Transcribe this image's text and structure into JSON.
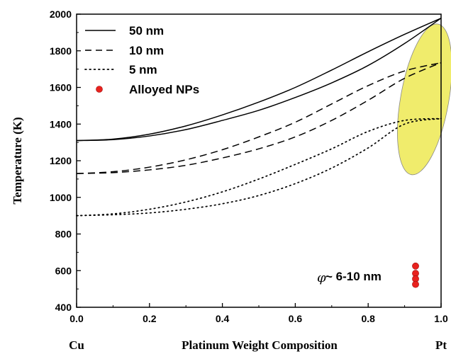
{
  "chart_data": {
    "type": "line",
    "xlabel": "Platinum Weight Composition",
    "ylabel": "Temperature (K)",
    "xlim": [
      0.0,
      1.0
    ],
    "ylim": [
      400,
      2000
    ],
    "x_ticks": [
      "0.0",
      "0.2",
      "0.4",
      "0.6",
      "0.8",
      "1.0"
    ],
    "y_ticks": [
      "400",
      "600",
      "800",
      "1000",
      "1200",
      "1400",
      "1600",
      "1800",
      "2000"
    ],
    "x_end_labels": {
      "left": "Cu",
      "right": "Pt"
    },
    "legend": {
      "position": "top-left",
      "entries": [
        {
          "label": "50 nm",
          "style": "solid"
        },
        {
          "label": "10 nm",
          "style": "dashed"
        },
        {
          "label": "5 nm",
          "style": "dotted"
        },
        {
          "label": "Alloyed NPs",
          "style": "marker",
          "color": "#e8221e"
        }
      ]
    },
    "series": [
      {
        "name": "50 nm",
        "style": "solid",
        "curves": [
          {
            "x": [
              0.0,
              0.1,
              0.2,
              0.3,
              0.4,
              0.5,
              0.6,
              0.7,
              0.8,
              0.9,
              1.0
            ],
            "y": [
              1310,
              1318,
              1345,
              1390,
              1450,
              1520,
              1600,
              1695,
              1795,
              1890,
              1978
            ]
          },
          {
            "x": [
              0.0,
              0.1,
              0.2,
              0.3,
              0.4,
              0.5,
              0.6,
              0.7,
              0.8,
              0.9,
              1.0
            ],
            "y": [
              1310,
              1315,
              1335,
              1370,
              1420,
              1475,
              1545,
              1625,
              1720,
              1840,
              1978
            ]
          }
        ]
      },
      {
        "name": "10 nm",
        "style": "dashed",
        "curves": [
          {
            "x": [
              0.0,
              0.1,
              0.2,
              0.3,
              0.4,
              0.5,
              0.6,
              0.7,
              0.8,
              0.9,
              1.0
            ],
            "y": [
              1130,
              1140,
              1165,
              1205,
              1260,
              1330,
              1410,
              1510,
              1610,
              1690,
              1735
            ]
          },
          {
            "x": [
              0.0,
              0.1,
              0.2,
              0.3,
              0.4,
              0.5,
              0.6,
              0.7,
              0.8,
              0.9,
              1.0
            ],
            "y": [
              1130,
              1135,
              1150,
              1175,
              1215,
              1265,
              1330,
              1420,
              1530,
              1650,
              1735
            ]
          }
        ]
      },
      {
        "name": "5 nm",
        "style": "dotted",
        "curves": [
          {
            "x": [
              0.0,
              0.1,
              0.2,
              0.3,
              0.4,
              0.5,
              0.6,
              0.7,
              0.8,
              0.9,
              1.0
            ],
            "y": [
              900,
              910,
              935,
              975,
              1030,
              1100,
              1180,
              1265,
              1360,
              1420,
              1430
            ]
          },
          {
            "x": [
              0.0,
              0.1,
              0.2,
              0.3,
              0.4,
              0.5,
              0.6,
              0.7,
              0.8,
              0.9,
              1.0
            ],
            "y": [
              900,
              905,
              915,
              935,
              965,
              1010,
              1075,
              1160,
              1270,
              1400,
              1430
            ]
          }
        ]
      }
    ],
    "alloyed_nps": {
      "x": 0.93,
      "y": [
        625,
        585,
        555,
        525
      ],
      "color": "#e8221e"
    },
    "highlight": {
      "color": "#f0ec6c",
      "center": [
        0.955,
        1535
      ],
      "note": "yellow ellipse near Pt end"
    },
    "annotation": {
      "symbol": "φ",
      "text": "~ 6-10 nm"
    }
  }
}
